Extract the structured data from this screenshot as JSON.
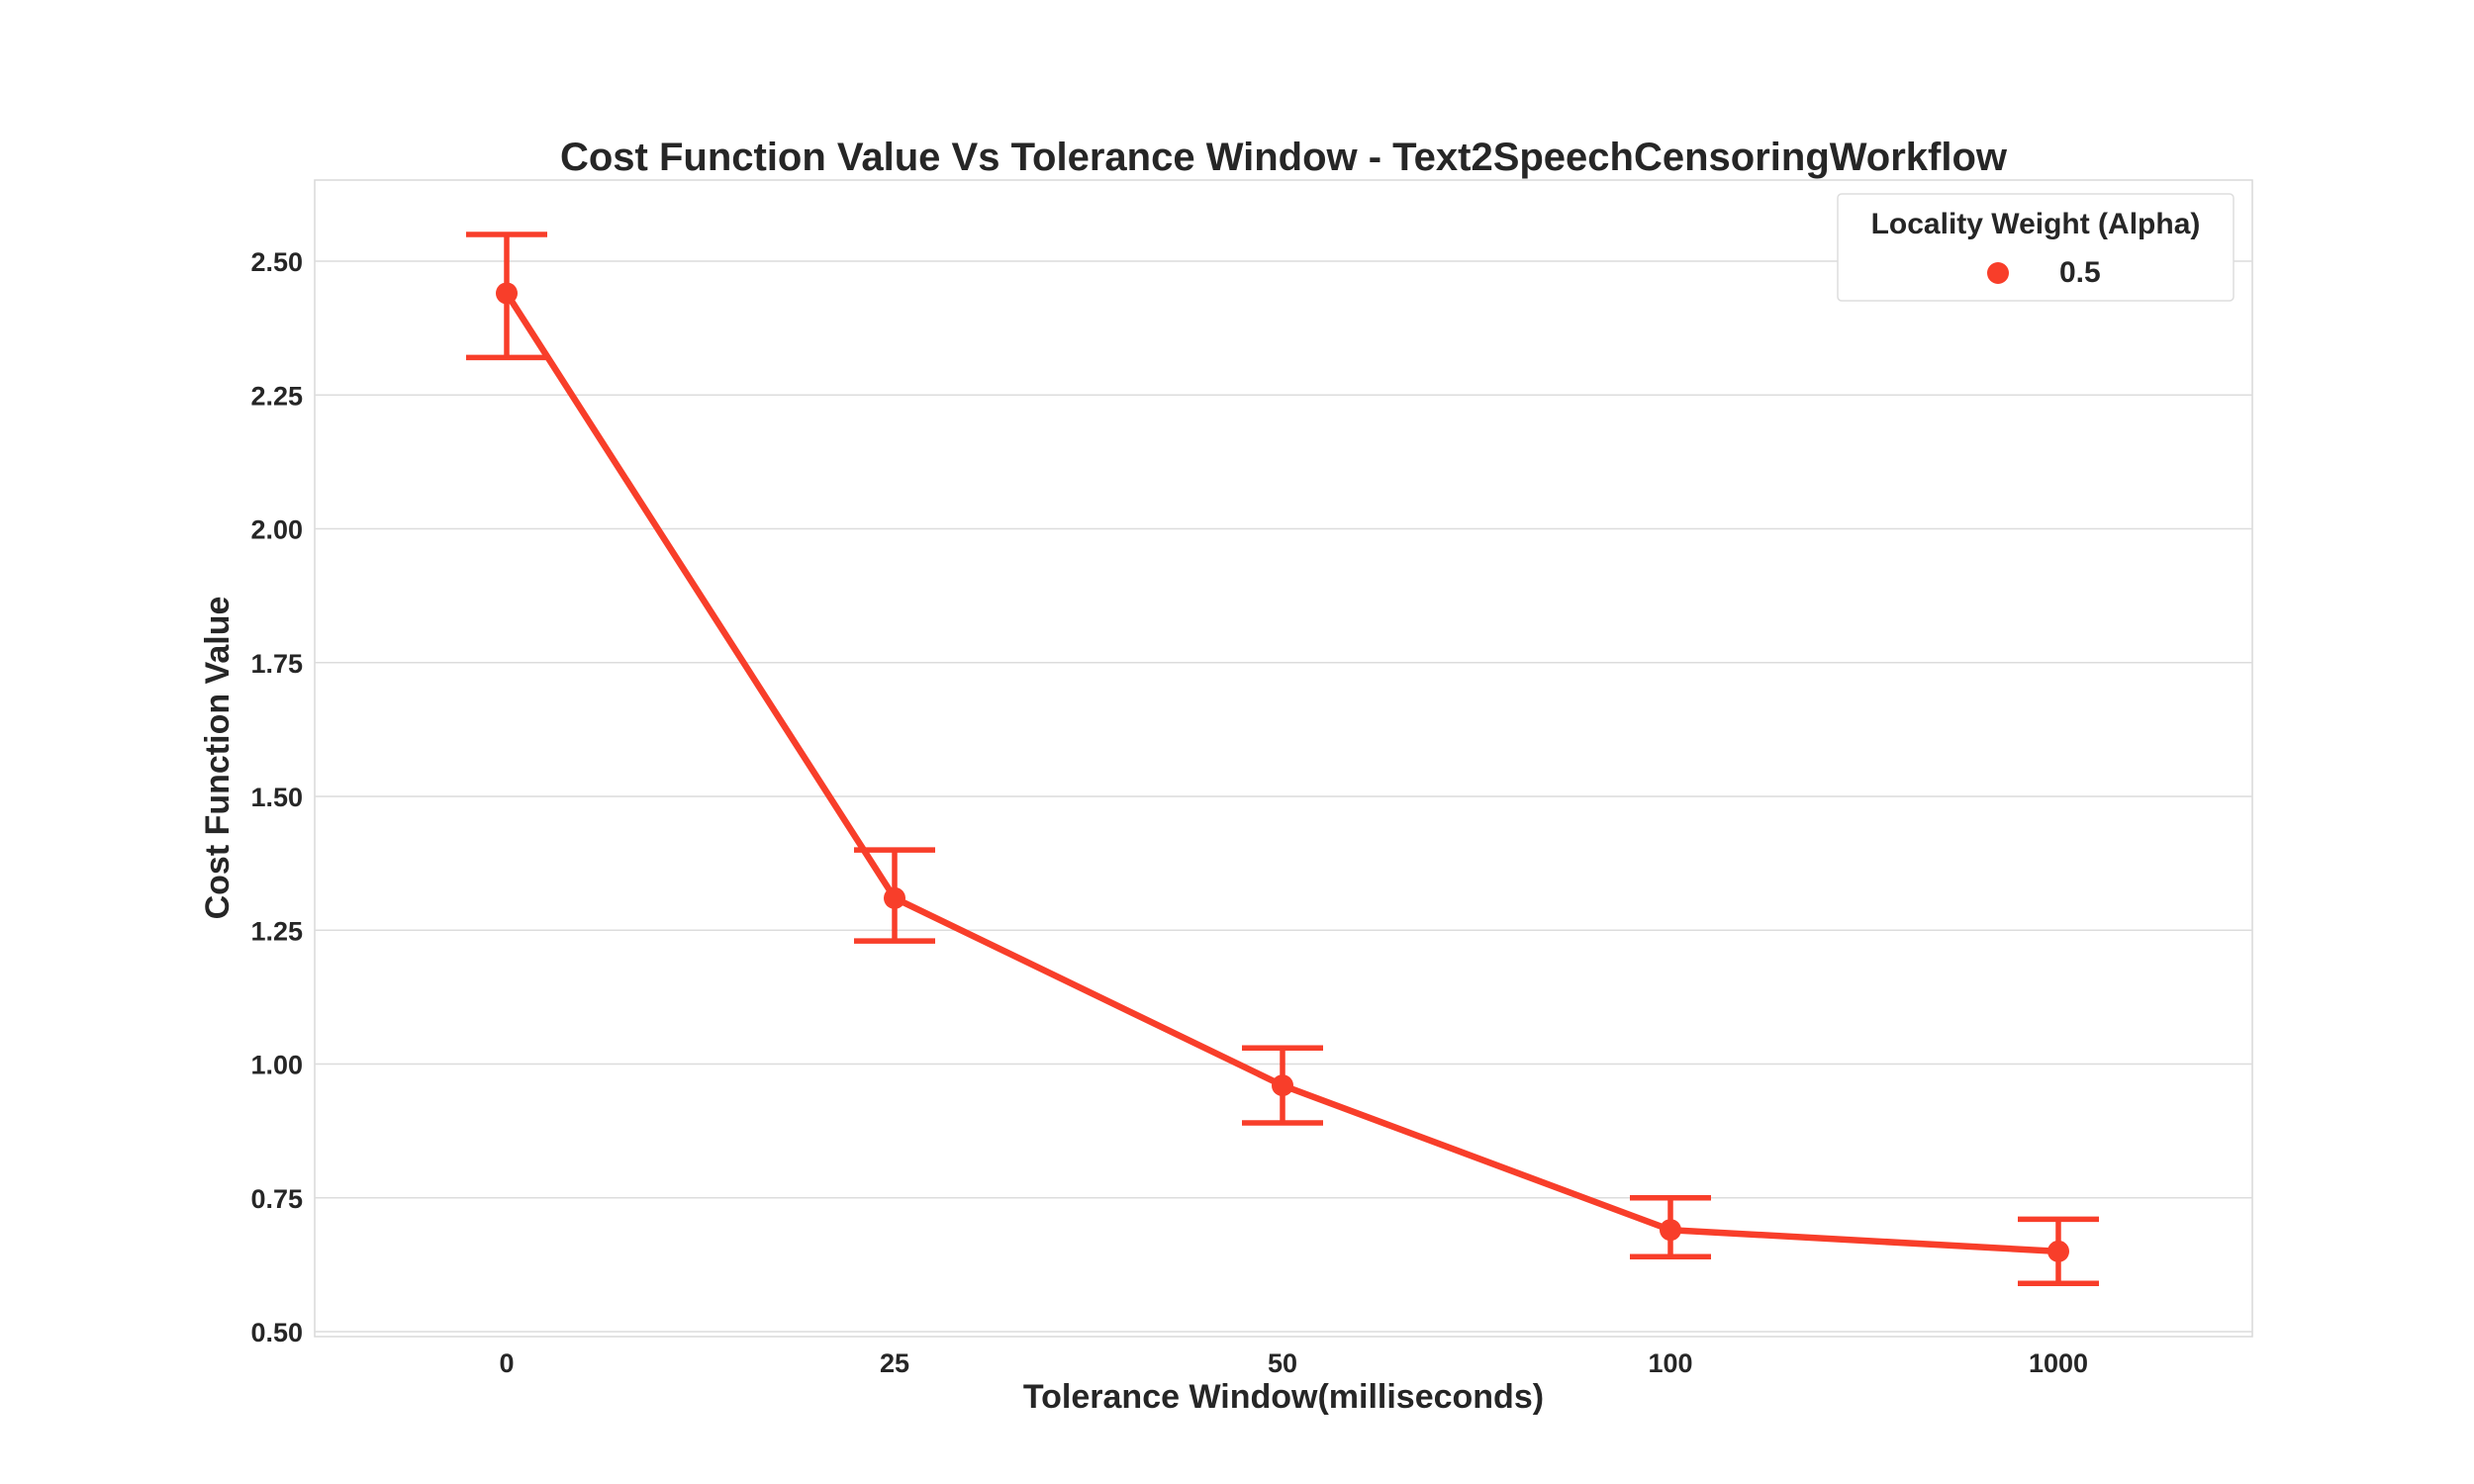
{
  "chart_data": {
    "type": "line",
    "title": "Cost Function Value Vs Tolerance Window - Text2SpeechCensoringWorkflow",
    "xlabel": "Tolerance Window(milliseconds)",
    "ylabel": "Cost Function Value",
    "categories": [
      "0",
      "25",
      "50",
      "100",
      "1000"
    ],
    "ylim": [
      0.5,
      2.64
    ],
    "yticks": [
      0.5,
      0.75,
      1.0,
      1.25,
      1.5,
      1.75,
      2.0,
      2.25,
      2.5
    ],
    "ytick_labels": [
      "0.50",
      "0.75",
      "1.00",
      "1.25",
      "1.50",
      "1.75",
      "2.00",
      "2.25",
      "2.50"
    ],
    "grid": "horizontal",
    "legend": {
      "title": "Locality Weight (Alpha)",
      "placement": "top-right"
    },
    "series": [
      {
        "name": "0.5",
        "color": "#f83e2a",
        "values": [
          2.44,
          1.31,
          0.96,
          0.69,
          0.65
        ],
        "error_low": [
          2.32,
          1.23,
          0.89,
          0.64,
          0.59
        ],
        "error_high": [
          2.55,
          1.4,
          1.03,
          0.75,
          0.71
        ]
      }
    ]
  }
}
